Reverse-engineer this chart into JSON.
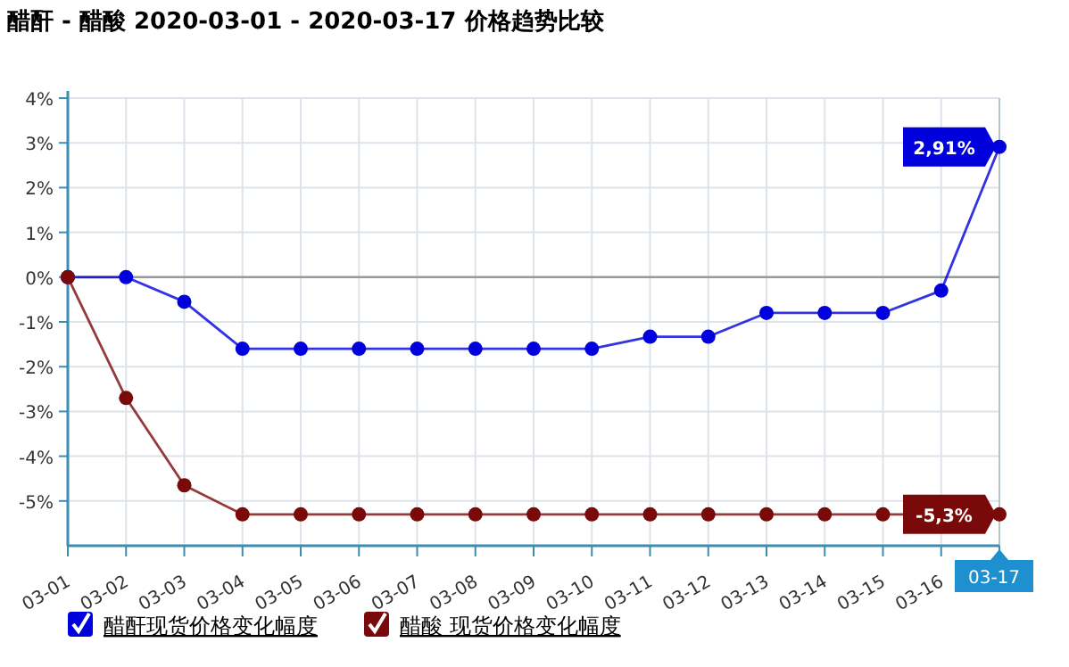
{
  "chart_data": {
    "type": "line",
    "title": "醋酐 - 醋酸 2020-03-01 - 2020-03-17 价格趋势比较",
    "categories": [
      "03-01",
      "03-02",
      "03-03",
      "03-04",
      "03-05",
      "03-06",
      "03-07",
      "03-08",
      "03-09",
      "03-10",
      "03-11",
      "03-12",
      "03-13",
      "03-14",
      "03-15",
      "03-16",
      "03-17"
    ],
    "series": [
      {
        "name": "醋酐现货价格变化幅度",
        "color": "#0000dd",
        "values": [
          0,
          0,
          -0.55,
          -1.6,
          -1.6,
          -1.6,
          -1.6,
          -1.6,
          -1.6,
          -1.6,
          -1.33,
          -1.33,
          -0.8,
          -0.8,
          -0.8,
          -0.3,
          2.91
        ]
      },
      {
        "name": "醋酸 现货价格变化幅度",
        "color": "#7a0a0a",
        "values": [
          0,
          -2.7,
          -4.65,
          -5.3,
          -5.3,
          -5.3,
          -5.3,
          -5.3,
          -5.3,
          -5.3,
          -5.3,
          -5.3,
          -5.3,
          -5.3,
          -5.3,
          -5.3,
          -5.3
        ]
      }
    ],
    "ylim": [
      -6,
      4
    ],
    "yticks": [
      {
        "value": 4,
        "label": "4%"
      },
      {
        "value": 3,
        "label": "3%"
      },
      {
        "value": 2,
        "label": "2%"
      },
      {
        "value": 1,
        "label": "1%"
      },
      {
        "value": 0,
        "label": "0%"
      },
      {
        "value": -1,
        "label": "-1%"
      },
      {
        "value": -2,
        "label": "-2%"
      },
      {
        "value": -3,
        "label": "-3%"
      },
      {
        "value": -4,
        "label": "-4%"
      },
      {
        "value": -5,
        "label": "-5%"
      }
    ],
    "grid": true,
    "legend": "bottom",
    "marker": "circle",
    "ref_lines": [
      {
        "axis": "y",
        "value": 0,
        "color": "#999999"
      }
    ],
    "annotations": [
      {
        "text": "2,91%",
        "x": "03-17",
        "y": 2.91
      },
      {
        "text": "-5,3%",
        "x": "03-17",
        "y": -5.3
      }
    ]
  }
}
